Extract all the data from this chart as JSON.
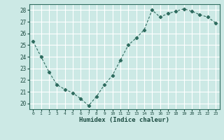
{
  "x": [
    0,
    1,
    2,
    3,
    4,
    5,
    6,
    7,
    8,
    9,
    10,
    11,
    12,
    13,
    14,
    15,
    16,
    17,
    18,
    19,
    20,
    21,
    22,
    23
  ],
  "y": [
    25.3,
    24.0,
    22.7,
    21.6,
    21.2,
    20.9,
    20.4,
    19.8,
    20.6,
    21.6,
    22.4,
    23.7,
    25.0,
    25.6,
    26.3,
    28.0,
    27.4,
    27.7,
    27.9,
    28.1,
    27.9,
    27.6,
    27.4,
    26.9
  ],
  "xlabel": "Humidex (Indice chaleur)",
  "ylim": [
    19.5,
    28.5
  ],
  "xlim": [
    -0.5,
    23.5
  ],
  "yticks": [
    20,
    21,
    22,
    23,
    24,
    25,
    26,
    27,
    28
  ],
  "xticks": [
    0,
    1,
    2,
    3,
    4,
    5,
    6,
    7,
    8,
    9,
    10,
    11,
    12,
    13,
    14,
    15,
    16,
    17,
    18,
    19,
    20,
    21,
    22,
    23
  ],
  "line_color": "#2e6b5e",
  "marker_color": "#2e6b5e",
  "bg_color": "#cce9e5",
  "grid_color": "#ffffff",
  "axes_color": "#2e6b5e",
  "label_color": "#1a4a40",
  "tick_color": "#1a4a40"
}
